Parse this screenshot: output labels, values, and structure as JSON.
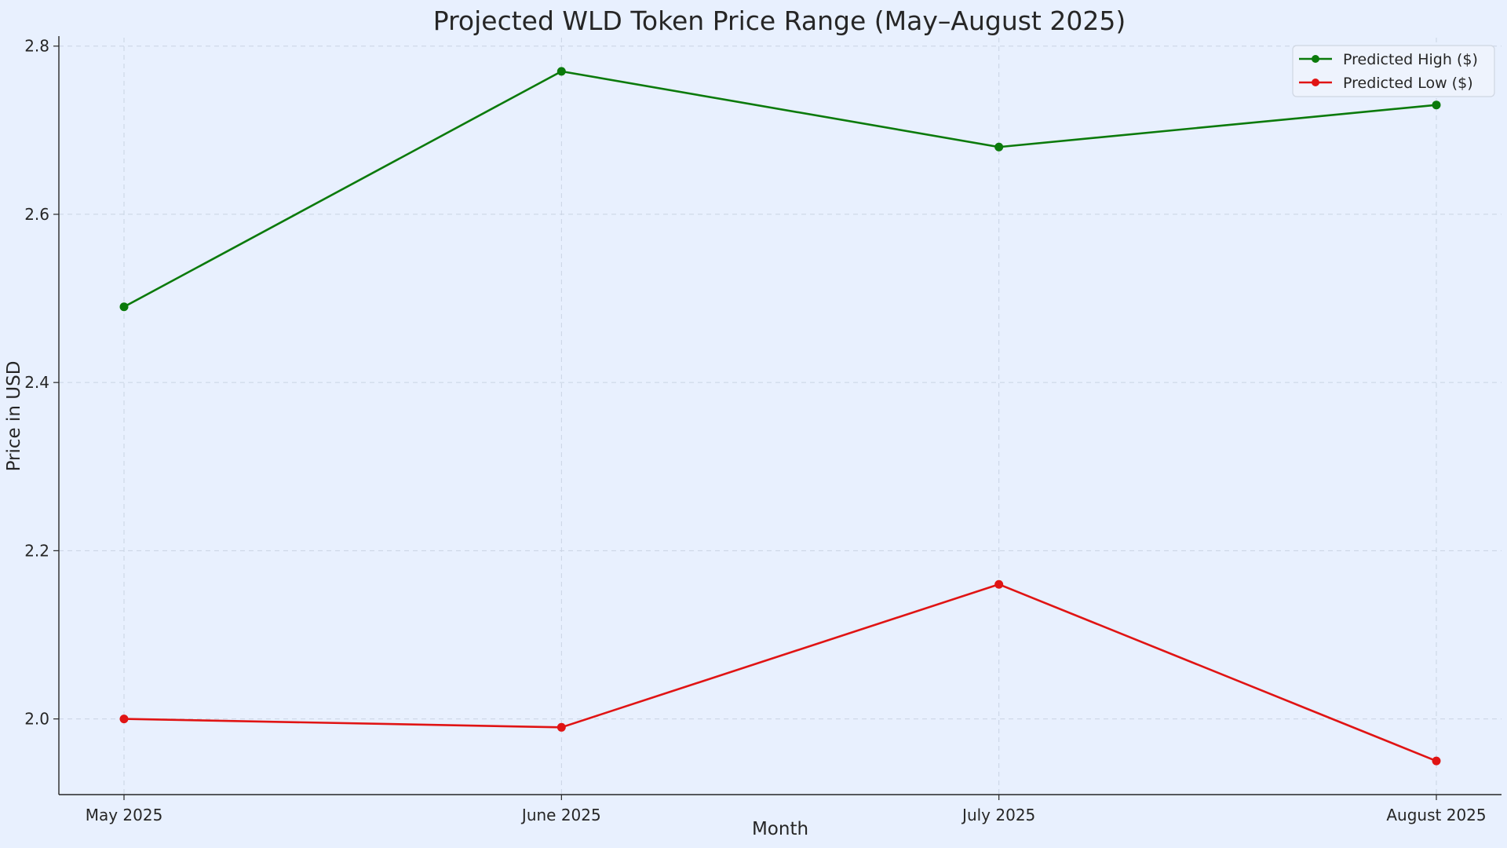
{
  "chart_data": {
    "type": "line",
    "title": "Projected WLD Token Price Range (May–August 2025)",
    "xlabel": "Month",
    "ylabel": "Price in USD",
    "categories": [
      "May 2025",
      "June 2025",
      "July 2025",
      "August 2025"
    ],
    "ylim": [
      1.91,
      2.81
    ],
    "yticks": [
      2.0,
      2.2,
      2.4,
      2.6,
      2.8
    ],
    "ytick_labels": [
      "2.0",
      "2.2",
      "2.4",
      "2.6",
      "2.8"
    ],
    "grid": true,
    "legend_position": "top-right",
    "series": [
      {
        "name": "Predicted High ($)",
        "color": "#0b7a0b",
        "values": [
          2.49,
          2.77,
          2.68,
          2.73
        ]
      },
      {
        "name": "Predicted Low ($)",
        "color": "#e01414",
        "values": [
          2.0,
          1.99,
          2.16,
          1.95
        ]
      }
    ]
  }
}
